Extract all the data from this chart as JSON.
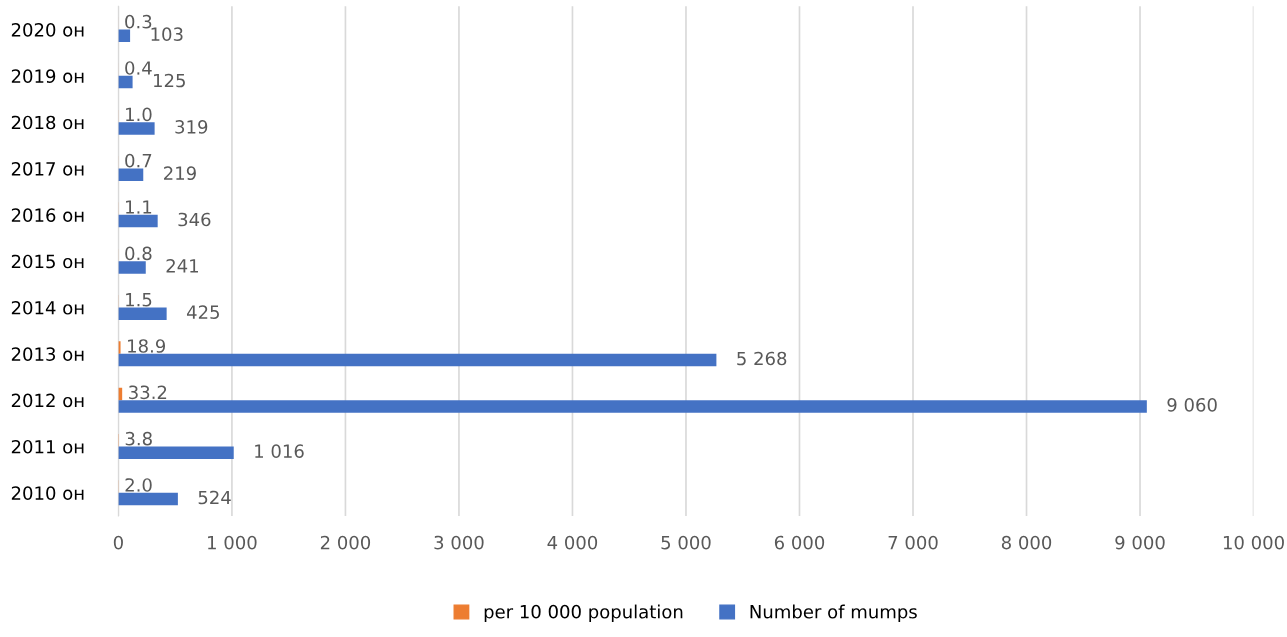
{
  "chart_data": {
    "type": "bar",
    "orientation": "horizontal",
    "categories": [
      "2020 он",
      "2019 он",
      "2018 он",
      "2017 он",
      "2016 он",
      "2015 он",
      "2014 он",
      "2013 он",
      "2012 он",
      "2011 он",
      "2010 он"
    ],
    "series": [
      {
        "name": "per 10 000 population",
        "color": "#ed7d31",
        "values": [
          0.3,
          0.4,
          1.0,
          0.7,
          1.1,
          0.8,
          1.5,
          18.9,
          33.2,
          3.8,
          2.0
        ],
        "value_labels": [
          "0.3",
          "0.4",
          "1.0",
          "0.7",
          "1.1",
          "0.8",
          "1.5",
          "18.9",
          "33.2",
          "3.8",
          "2.0"
        ]
      },
      {
        "name": "Number of mumps",
        "color": "#4472c4",
        "values": [
          103,
          125,
          319,
          219,
          346,
          241,
          425,
          5268,
          9060,
          1016,
          524
        ],
        "value_labels": [
          "103",
          "125",
          "319",
          "219",
          "346",
          "241",
          "425",
          "5 268",
          "9 060",
          "1 016",
          "524"
        ]
      }
    ],
    "xlim": [
      0,
      10000
    ],
    "xticks": [
      0,
      {
        "value": 1000,
        "label": "1 000"
      },
      {
        "value": 2000,
        "label": "2 000"
      },
      {
        "value": 3000,
        "label": "3 000"
      },
      {
        "value": 4000,
        "label": "4 000"
      },
      {
        "value": 5000,
        "label": "5 000"
      },
      {
        "value": 6000,
        "label": "6 000"
      },
      {
        "value": 7000,
        "label": "7 000"
      },
      {
        "value": 8000,
        "label": "8 000"
      },
      {
        "value": 9000,
        "label": "9 000"
      },
      {
        "value": 10000,
        "label": "10 000"
      }
    ],
    "grid": "x",
    "legend": "bottom"
  }
}
